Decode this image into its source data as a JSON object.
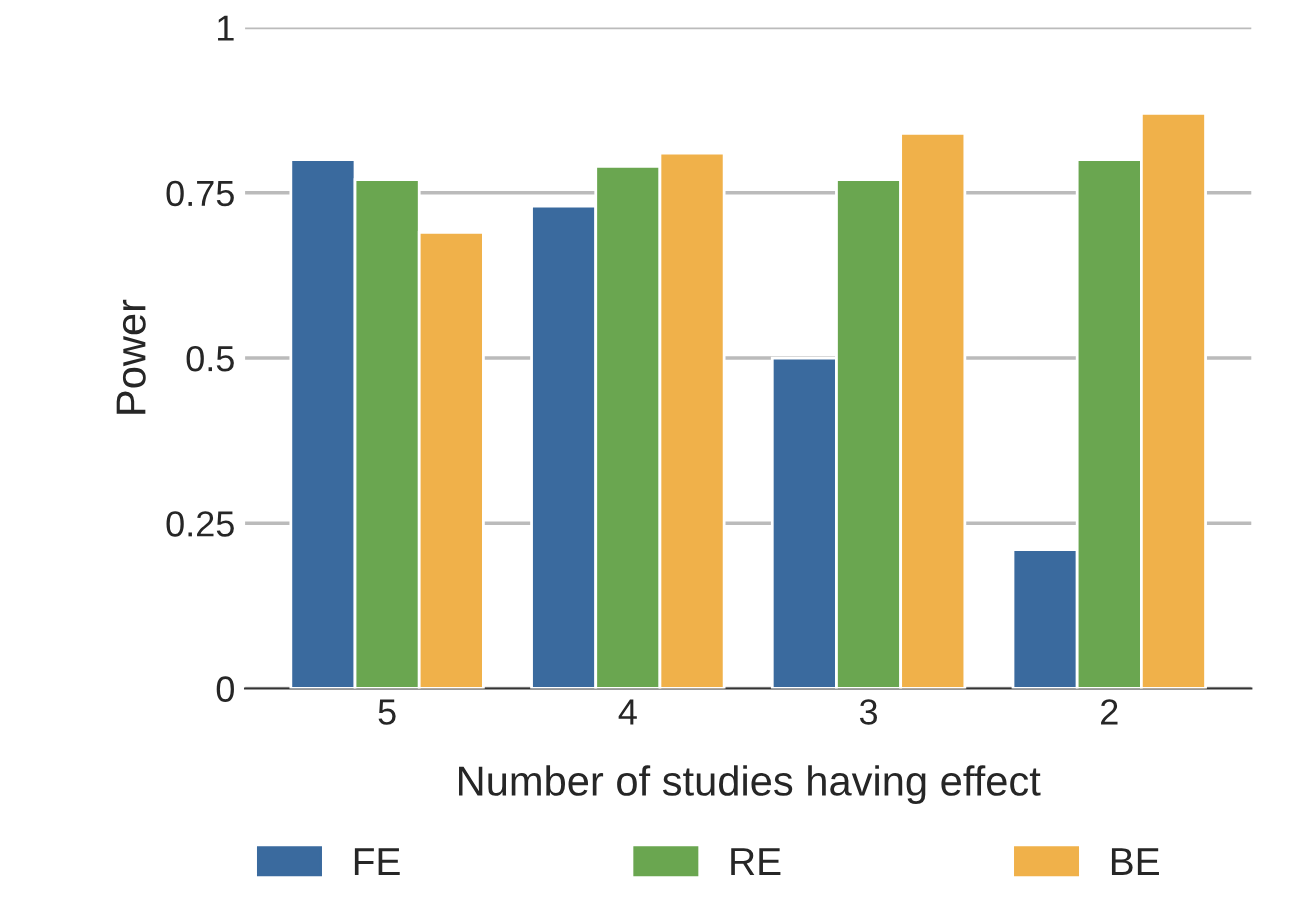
{
  "chart_data": {
    "type": "bar",
    "xlabel": "Number of studies having effect",
    "ylabel": "Power",
    "categories": [
      "5",
      "4",
      "3",
      "2"
    ],
    "series": [
      {
        "name": "FE",
        "color": "#3a6a9e",
        "values": [
          0.8,
          0.73,
          0.5,
          0.21
        ]
      },
      {
        "name": "RE",
        "color": "#6aa650",
        "values": [
          0.77,
          0.79,
          0.77,
          0.8
        ]
      },
      {
        "name": "BE",
        "color": "#f0b14a",
        "values": [
          0.69,
          0.81,
          0.84,
          0.87
        ]
      }
    ],
    "ylim": [
      0,
      1
    ],
    "yticks": [
      0,
      {
        "value": 0.25,
        "label": "0.25"
      },
      {
        "value": 0.5,
        "label": "0.5"
      },
      {
        "value": 0.75,
        "label": "0.75"
      },
      1
    ],
    "grid": "y",
    "legend": "bottom"
  }
}
